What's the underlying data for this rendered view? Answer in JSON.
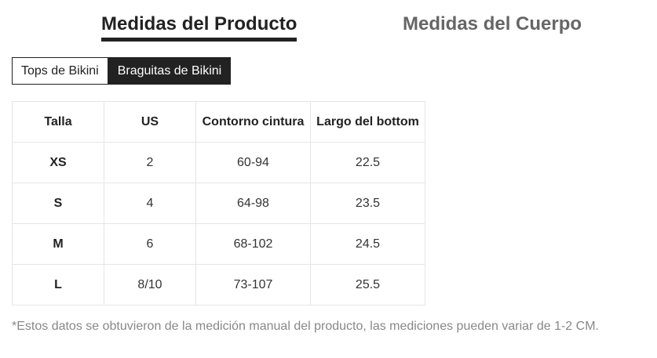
{
  "main_tabs": {
    "product": "Medidas del Producto",
    "body": "Medidas del Cuerpo"
  },
  "sub_tabs": {
    "tops": "Tops de Bikini",
    "bottoms": "Braguitas de Bikini"
  },
  "table": {
    "headers": [
      "Talla",
      "US",
      "Contorno cintura",
      "Largo del bottom"
    ],
    "rows": [
      [
        "XS",
        "2",
        "60-94",
        "22.5"
      ],
      [
        "S",
        "4",
        "64-98",
        "23.5"
      ],
      [
        "M",
        "6",
        "68-102",
        "24.5"
      ],
      [
        "L",
        "8/10",
        "73-107",
        "25.5"
      ]
    ]
  },
  "note": "*Estos datos se obtuvieron de la medición manual del producto, las mediciones pueden variar de 1-2 CM."
}
